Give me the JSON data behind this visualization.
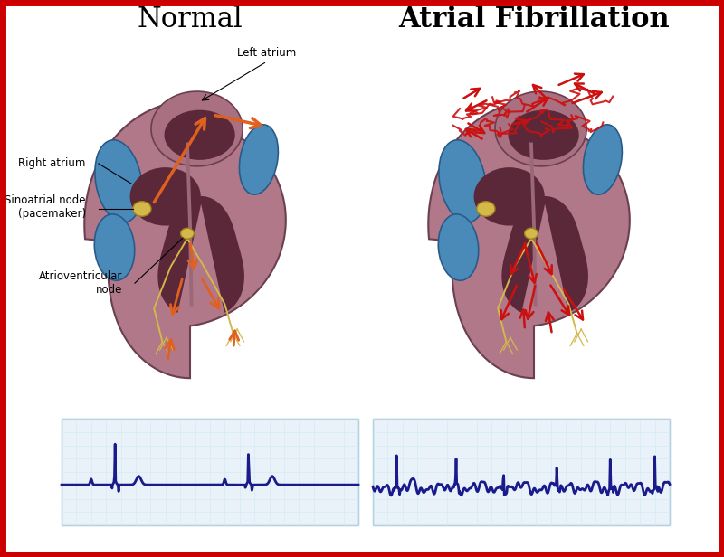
{
  "title_normal": "Normal",
  "title_af": "Atrial Fibrillation",
  "label_left_atrium": "Left atrium",
  "label_right_atrium": "Right atrium",
  "label_sa_node": "Sinoatrial node\n(pacemaker)",
  "label_av_node": "Atrioventricular\nnode",
  "bg_color": "#ffffff",
  "border_color": "#cc0000",
  "ecg_color": "#1a1a8c",
  "grid_color": "#b8d4e8",
  "heart_color_outer": "#9e6b7a",
  "heart_color_inner": "#7a4a5a",
  "heart_color_chamber": "#5a2a3a",
  "blue_vessel_color": "#4a90c4",
  "sa_node_color": "#d4b84a",
  "arrow_normal_color": "#e06020",
  "arrow_af_color": "#cc1010",
  "title_fontsize": 22,
  "label_fontsize": 9,
  "ecg_linewidth": 2.0
}
